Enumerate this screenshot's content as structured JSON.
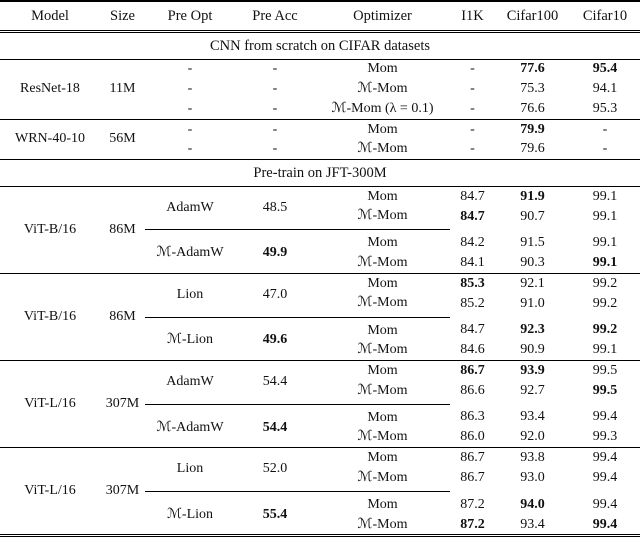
{
  "table": {
    "columns": [
      "Model",
      "Size",
      "Pre Opt",
      "Pre Acc",
      "Optimizer",
      "I1K",
      "Cifar100",
      "Cifar10"
    ],
    "sections": [
      {
        "title": "CNN from scratch on CIFAR datasets",
        "groups": [
          {
            "model": "ResNet-18",
            "size": "11M",
            "subgroups": [
              {
                "rows": [
                  {
                    "pre_opt": "-",
                    "pre_acc": "-",
                    "opt": "Mom",
                    "i1k": "-",
                    "c100": "77.6",
                    "c10": "95.4",
                    "bold": [
                      "c100",
                      "c10"
                    ]
                  },
                  {
                    "pre_opt": "-",
                    "pre_acc": "-",
                    "opt": "ℳ-Mom",
                    "i1k": "-",
                    "c100": "75.3",
                    "c10": "94.1",
                    "bold": []
                  },
                  {
                    "pre_opt": "-",
                    "pre_acc": "-",
                    "opt": "ℳ-Mom (λ = 0.1)",
                    "i1k": "-",
                    "c100": "76.6",
                    "c10": "95.3",
                    "bold": []
                  }
                ]
              }
            ]
          },
          {
            "model": "WRN-40-10",
            "size": "56M",
            "subgroups": [
              {
                "rows": [
                  {
                    "pre_opt": "-",
                    "pre_acc": "-",
                    "opt": "Mom",
                    "i1k": "-",
                    "c100": "79.9",
                    "c10": "-",
                    "bold": [
                      "c100"
                    ]
                  },
                  {
                    "pre_opt": "-",
                    "pre_acc": "-",
                    "opt": "ℳ-Mom",
                    "i1k": "-",
                    "c100": "79.6",
                    "c10": "-",
                    "bold": []
                  }
                ]
              }
            ]
          }
        ]
      },
      {
        "title": "Pre-train on JFT-300M",
        "groups": [
          {
            "model": "ViT-B/16",
            "size": "86M",
            "subgroups": [
              {
                "pre_opt": "AdamW",
                "pre_acc": "48.5",
                "bold": [],
                "rows": [
                  {
                    "opt": "Mom",
                    "i1k": "84.7",
                    "c100": "91.9",
                    "c10": "99.1",
                    "bold": [
                      "c100"
                    ]
                  },
                  {
                    "opt": "ℳ-Mom",
                    "i1k": "84.7",
                    "c100": "90.7",
                    "c10": "99.1",
                    "bold": [
                      "i1k"
                    ]
                  }
                ]
              },
              {
                "pre_opt": "ℳ-AdamW",
                "pre_acc": "49.9",
                "bold": [
                  "pre_acc"
                ],
                "rows": [
                  {
                    "opt": "Mom",
                    "i1k": "84.2",
                    "c100": "91.5",
                    "c10": "99.1",
                    "bold": []
                  },
                  {
                    "opt": "ℳ-Mom",
                    "i1k": "84.1",
                    "c100": "90.3",
                    "c10": "99.1",
                    "bold": [
                      "c10"
                    ]
                  }
                ]
              }
            ]
          },
          {
            "model": "ViT-B/16",
            "size": "86M",
            "subgroups": [
              {
                "pre_opt": "Lion",
                "pre_acc": "47.0",
                "bold": [],
                "rows": [
                  {
                    "opt": "Mom",
                    "i1k": "85.3",
                    "c100": "92.1",
                    "c10": "99.2",
                    "bold": [
                      "i1k"
                    ]
                  },
                  {
                    "opt": "ℳ-Mom",
                    "i1k": "85.2",
                    "c100": "91.0",
                    "c10": "99.2",
                    "bold": []
                  }
                ]
              },
              {
                "pre_opt": "ℳ-Lion",
                "pre_acc": "49.6",
                "bold": [
                  "pre_acc"
                ],
                "rows": [
                  {
                    "opt": "Mom",
                    "i1k": "84.7",
                    "c100": "92.3",
                    "c10": "99.2",
                    "bold": [
                      "c100",
                      "c10"
                    ]
                  },
                  {
                    "opt": "ℳ-Mom",
                    "i1k": "84.6",
                    "c100": "90.9",
                    "c10": "99.1",
                    "bold": []
                  }
                ]
              }
            ]
          },
          {
            "model": "ViT-L/16",
            "size": "307M",
            "subgroups": [
              {
                "pre_opt": "AdamW",
                "pre_acc": "54.4",
                "bold": [],
                "rows": [
                  {
                    "opt": "Mom",
                    "i1k": "86.7",
                    "c100": "93.9",
                    "c10": "99.5",
                    "bold": [
                      "i1k",
                      "c100"
                    ]
                  },
                  {
                    "opt": "ℳ-Mom",
                    "i1k": "86.6",
                    "c100": "92.7",
                    "c10": "99.5",
                    "bold": [
                      "c10"
                    ]
                  }
                ]
              },
              {
                "pre_opt": "ℳ-AdamW",
                "pre_acc": "54.4",
                "bold": [
                  "pre_acc"
                ],
                "rows": [
                  {
                    "opt": "Mom",
                    "i1k": "86.3",
                    "c100": "93.4",
                    "c10": "99.4",
                    "bold": []
                  },
                  {
                    "opt": "ℳ-Mom",
                    "i1k": "86.0",
                    "c100": "92.0",
                    "c10": "99.3",
                    "bold": []
                  }
                ]
              }
            ]
          },
          {
            "model": "ViT-L/16",
            "size": "307M",
            "subgroups": [
              {
                "pre_opt": "Lion",
                "pre_acc": "52.0",
                "bold": [],
                "rows": [
                  {
                    "opt": "Mom",
                    "i1k": "86.7",
                    "c100": "93.8",
                    "c10": "99.4",
                    "bold": []
                  },
                  {
                    "opt": "ℳ-Mom",
                    "i1k": "86.7",
                    "c100": "93.0",
                    "c10": "99.4",
                    "bold": []
                  }
                ]
              },
              {
                "pre_opt": "ℳ-Lion",
                "pre_acc": "55.4",
                "bold": [
                  "pre_acc"
                ],
                "rows": [
                  {
                    "opt": "Mom",
                    "i1k": "87.2",
                    "c100": "94.0",
                    "c10": "99.4",
                    "bold": [
                      "c100"
                    ]
                  },
                  {
                    "opt": "ℳ-Mom",
                    "i1k": "87.2",
                    "c100": "93.4",
                    "c10": "99.4",
                    "bold": [
                      "i1k",
                      "c10"
                    ]
                  }
                ]
              }
            ]
          }
        ]
      }
    ]
  }
}
